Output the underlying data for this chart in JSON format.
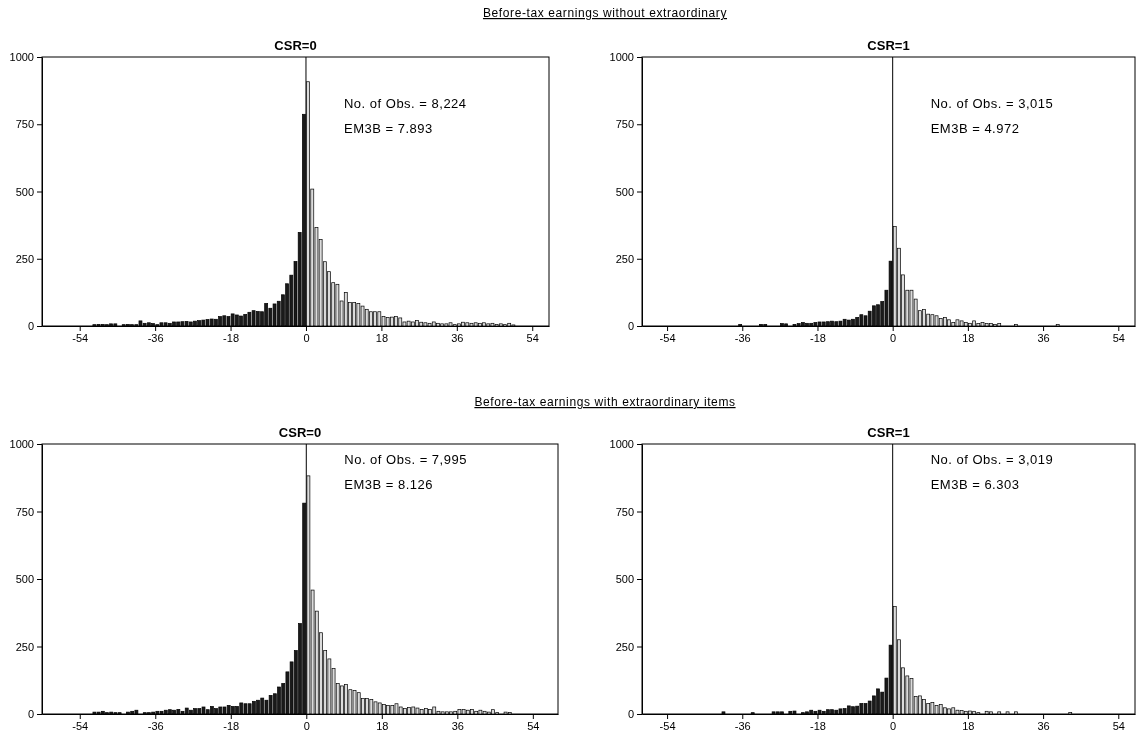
{
  "chart_data": [
    {
      "type": "histogram",
      "title": "CSR=0",
      "subtitle": "Before-tax earnings without extraordinary",
      "annotations": [
        "No. of Obs. = 8,224",
        "EM3B = 7.893"
      ],
      "bins": [
        -51,
        -50,
        -49,
        -48,
        -47,
        -46,
        -45,
        -44,
        -43,
        -42,
        -41,
        -40,
        -39,
        -38,
        -37,
        -36,
        -35,
        -34,
        -33,
        -32,
        -31,
        -30,
        -29,
        -28,
        -27,
        -26,
        -25,
        -24,
        -23,
        -22,
        -21,
        -20,
        -19,
        -18,
        -17,
        -16,
        -15,
        -14,
        -13,
        -12,
        -11,
        -10,
        -9,
        -8,
        -7,
        -6,
        -5,
        -4,
        -3,
        -2,
        -1,
        0,
        1,
        2,
        3,
        4,
        5,
        6,
        7,
        8,
        9,
        10,
        11,
        12,
        13,
        14,
        15,
        16,
        17,
        18,
        19,
        20,
        21,
        22,
        23,
        24,
        25,
        26,
        27,
        28,
        29,
        30,
        31,
        32,
        33,
        34,
        35,
        36,
        37,
        38,
        39,
        40,
        41,
        42,
        43,
        44,
        45,
        46,
        47,
        48,
        49,
        50
      ],
      "values": [
        5,
        6,
        6,
        5,
        8,
        8,
        0,
        5,
        6,
        5,
        5,
        19,
        10,
        12,
        9,
        5,
        12,
        12,
        10,
        15,
        15,
        16,
        17,
        15,
        18,
        20,
        22,
        24,
        26,
        25,
        35,
        38,
        35,
        45,
        41,
        37,
        43,
        51,
        57,
        54,
        53,
        84,
        66,
        82,
        92,
        116,
        157,
        189,
        240,
        348,
        787,
        908,
        509,
        366,
        322,
        239,
        202,
        161,
        155,
        93,
        125,
        87,
        87,
        84,
        74,
        62,
        53,
        53,
        53,
        35,
        32,
        33,
        35,
        30,
        15,
        18,
        15,
        20,
        14,
        12,
        10,
        15,
        10,
        8,
        8,
        12,
        5,
        8,
        14,
        12,
        10,
        12,
        10,
        12,
        8,
        10,
        6,
        8,
        5,
        10,
        4
      ],
      "colors": [
        "#1a1a1a",
        "#1a1a1a",
        "#1a1a1a",
        "#1a1a1a",
        "#1a1a1a",
        "#1a1a1a",
        "#1a1a1a",
        "#1a1a1a",
        "#1a1a1a",
        "#1a1a1a",
        "#1a1a1a",
        "#1a1a1a",
        "#1a1a1a",
        "#1a1a1a",
        "#1a1a1a",
        "#1a1a1a",
        "#1a1a1a",
        "#1a1a1a",
        "#1a1a1a",
        "#1a1a1a",
        "#1a1a1a",
        "#1a1a1a",
        "#1a1a1a",
        "#1a1a1a",
        "#1a1a1a",
        "#1a1a1a",
        "#1a1a1a",
        "#1a1a1a",
        "#1a1a1a",
        "#1a1a1a",
        "#1a1a1a",
        "#1a1a1a",
        "#1a1a1a",
        "#1a1a1a",
        "#1a1a1a",
        "#1a1a1a",
        "#1a1a1a",
        "#1a1a1a",
        "#1a1a1a",
        "#1a1a1a",
        "#1a1a1a",
        "#1a1a1a",
        "#1a1a1a",
        "#1a1a1a",
        "#1a1a1a",
        "#1a1a1a",
        "#1a1a1a",
        "#1a1a1a",
        "#1a1a1a",
        "#1a1a1a",
        "#1a1a1a",
        "#dcdcdc",
        "#dcdcdc",
        "#dcdcdc",
        "#dcdcdc",
        "#dcdcdc",
        "#dcdcdc",
        "#dcdcdc",
        "#dcdcdc",
        "#dcdcdc",
        "#dcdcdc",
        "#dcdcdc",
        "#dcdcdc",
        "#dcdcdc",
        "#dcdcdc",
        "#dcdcdc",
        "#dcdcdc",
        "#dcdcdc",
        "#dcdcdc",
        "#dcdcdc",
        "#dcdcdc",
        "#dcdcdc",
        "#dcdcdc",
        "#dcdcdc",
        "#dcdcdc",
        "#dcdcdc",
        "#dcdcdc",
        "#dcdcdc",
        "#dcdcdc",
        "#dcdcdc",
        "#dcdcdc",
        "#dcdcdc",
        "#dcdcdc",
        "#dcdcdc",
        "#dcdcdc",
        "#dcdcdc",
        "#dcdcdc",
        "#dcdcdc",
        "#dcdcdc",
        "#dcdcdc",
        "#dcdcdc",
        "#dcdcdc",
        "#dcdcdc",
        "#dcdcdc",
        "#dcdcdc",
        "#dcdcdc",
        "#dcdcdc",
        "#dcdcdc",
        "#dcdcdc",
        "#dcdcdc",
        "#dcdcdc"
      ],
      "xlim": [
        -63,
        58
      ],
      "xticks": [
        -54,
        -36,
        -18,
        0,
        18,
        36,
        54
      ],
      "ylim": [
        0,
        1000
      ],
      "yticks": [
        0,
        250,
        500,
        750,
        1000
      ],
      "ref_lines": [
        {
          "axis": "x",
          "value": 0
        }
      ]
    },
    {
      "type": "histogram",
      "title": "CSR=1",
      "annotations": [
        "No. of Obs. = 3,015",
        "EM3B = 4.972"
      ],
      "bins": [
        -51,
        -50,
        -49,
        -48,
        -47,
        -46,
        -45,
        -44,
        -43,
        -42,
        -41,
        -40,
        -39,
        -38,
        -37,
        -36,
        -35,
        -34,
        -33,
        -32,
        -31,
        -30,
        -29,
        -28,
        -27,
        -26,
        -25,
        -24,
        -23,
        -22,
        -21,
        -20,
        -19,
        -18,
        -17,
        -16,
        -15,
        -14,
        -13,
        -12,
        -11,
        -10,
        -9,
        -8,
        -7,
        -6,
        -5,
        -4,
        -3,
        -2,
        -1,
        0,
        1,
        2,
        3,
        4,
        5,
        6,
        7,
        8,
        9,
        10,
        11,
        12,
        13,
        14,
        15,
        16,
        17,
        18,
        19,
        20,
        21,
        22,
        23,
        24,
        25,
        26,
        27,
        28,
        29,
        30,
        31,
        32,
        33,
        34,
        35,
        36,
        37,
        38,
        39,
        40,
        41,
        42,
        43,
        44,
        45,
        46,
        47,
        48,
        49,
        50
      ],
      "values": [
        0,
        0,
        0,
        0,
        0,
        0,
        0,
        0,
        0,
        0,
        0,
        0,
        0,
        0,
        6,
        0,
        0,
        0,
        0,
        6,
        6,
        0,
        0,
        0,
        9,
        8,
        0,
        6,
        9,
        13,
        10,
        10,
        13,
        15,
        15,
        16,
        18,
        16,
        18,
        25,
        22,
        25,
        32,
        42,
        38,
        55,
        75,
        79,
        91,
        133,
        241,
        370,
        289,
        190,
        133,
        133,
        100,
        57,
        61,
        44,
        42,
        38,
        28,
        32,
        23,
        13,
        23,
        19,
        13,
        10,
        19,
        9,
        13,
        9,
        9,
        6,
        9,
        0,
        0,
        0,
        6,
        0,
        0,
        0,
        0,
        0,
        0,
        0,
        0,
        0,
        6,
        0,
        0,
        0,
        0,
        0,
        0,
        0,
        0,
        0,
        0
      ],
      "colors": [
        "#1a1a1a",
        "#1a1a1a",
        "#1a1a1a",
        "#1a1a1a",
        "#1a1a1a",
        "#1a1a1a",
        "#1a1a1a",
        "#1a1a1a",
        "#1a1a1a",
        "#1a1a1a",
        "#1a1a1a",
        "#1a1a1a",
        "#1a1a1a",
        "#1a1a1a",
        "#1a1a1a",
        "#1a1a1a",
        "#1a1a1a",
        "#1a1a1a",
        "#1a1a1a",
        "#1a1a1a",
        "#1a1a1a",
        "#1a1a1a",
        "#1a1a1a",
        "#1a1a1a",
        "#1a1a1a",
        "#1a1a1a",
        "#1a1a1a",
        "#1a1a1a",
        "#1a1a1a",
        "#1a1a1a",
        "#1a1a1a",
        "#1a1a1a",
        "#1a1a1a",
        "#1a1a1a",
        "#1a1a1a",
        "#1a1a1a",
        "#1a1a1a",
        "#1a1a1a",
        "#1a1a1a",
        "#1a1a1a",
        "#1a1a1a",
        "#1a1a1a",
        "#1a1a1a",
        "#1a1a1a",
        "#1a1a1a",
        "#1a1a1a",
        "#1a1a1a",
        "#1a1a1a",
        "#1a1a1a",
        "#1a1a1a",
        "#1a1a1a",
        "#dcdcdc",
        "#dcdcdc",
        "#dcdcdc",
        "#dcdcdc",
        "#dcdcdc",
        "#dcdcdc",
        "#dcdcdc",
        "#dcdcdc",
        "#dcdcdc",
        "#dcdcdc",
        "#dcdcdc",
        "#dcdcdc",
        "#dcdcdc",
        "#dcdcdc",
        "#dcdcdc",
        "#dcdcdc",
        "#dcdcdc",
        "#dcdcdc",
        "#dcdcdc",
        "#dcdcdc",
        "#dcdcdc",
        "#dcdcdc",
        "#dcdcdc",
        "#dcdcdc",
        "#dcdcdc",
        "#dcdcdc",
        "#dcdcdc",
        "#dcdcdc",
        "#dcdcdc",
        "#dcdcdc",
        "#dcdcdc",
        "#dcdcdc",
        "#dcdcdc",
        "#dcdcdc",
        "#dcdcdc",
        "#dcdcdc",
        "#dcdcdc",
        "#dcdcdc",
        "#dcdcdc",
        "#dcdcdc",
        "#dcdcdc",
        "#dcdcdc",
        "#dcdcdc",
        "#dcdcdc",
        "#dcdcdc",
        "#dcdcdc",
        "#dcdcdc",
        "#dcdcdc",
        "#dcdcdc",
        "#dcdcdc"
      ],
      "xlim": [
        -60,
        58
      ],
      "xticks": [
        -54,
        -36,
        -18,
        0,
        18,
        36,
        54
      ],
      "ylim": [
        0,
        1000
      ],
      "yticks": [
        0,
        250,
        500,
        750,
        1000
      ],
      "ref_lines": [
        {
          "axis": "x",
          "value": 0
        }
      ]
    },
    {
      "type": "histogram",
      "title": "CSR=0",
      "subtitle": "Before-tax earnings with extraordinary items",
      "annotations": [
        "No. of Obs. = 7,995",
        "EM3B = 8.126"
      ],
      "bins": [
        -51,
        -50,
        -49,
        -48,
        -47,
        -46,
        -45,
        -44,
        -43,
        -42,
        -41,
        -40,
        -39,
        -38,
        -37,
        -36,
        -35,
        -34,
        -33,
        -32,
        -31,
        -30,
        -29,
        -28,
        -27,
        -26,
        -25,
        -24,
        -23,
        -22,
        -21,
        -20,
        -19,
        -18,
        -17,
        -16,
        -15,
        -14,
        -13,
        -12,
        -11,
        -10,
        -9,
        -8,
        -7,
        -6,
        -5,
        -4,
        -3,
        -2,
        -1,
        0,
        1,
        2,
        3,
        4,
        5,
        6,
        7,
        8,
        9,
        10,
        11,
        12,
        13,
        14,
        15,
        16,
        17,
        18,
        19,
        20,
        21,
        22,
        23,
        24,
        25,
        26,
        27,
        28,
        29,
        30,
        31,
        32,
        33,
        34,
        35,
        36,
        37,
        38,
        39,
        40,
        41,
        42,
        43,
        44,
        45,
        46,
        47,
        48,
        49,
        50
      ],
      "values": [
        7,
        7,
        10,
        5,
        7,
        5,
        5,
        0,
        7,
        10,
        14,
        0,
        5,
        5,
        7,
        10,
        10,
        14,
        16,
        14,
        17,
        10,
        22,
        14,
        20,
        20,
        26,
        16,
        28,
        20,
        26,
        26,
        32,
        28,
        28,
        41,
        38,
        38,
        47,
        51,
        59,
        51,
        69,
        75,
        100,
        113,
        156,
        193,
        235,
        335,
        781,
        882,
        459,
        381,
        301,
        235,
        204,
        168,
        113,
        104,
        109,
        90,
        87,
        79,
        57,
        57,
        54,
        45,
        41,
        35,
        32,
        32,
        38,
        26,
        20,
        24,
        26,
        22,
        17,
        20,
        17,
        26,
        10,
        8,
        8,
        8,
        10,
        17,
        17,
        14,
        17,
        10,
        14,
        10,
        7,
        16,
        5,
        0,
        7,
        6,
        0
      ],
      "colors": [
        "#1a1a1a",
        "#1a1a1a",
        "#1a1a1a",
        "#1a1a1a",
        "#1a1a1a",
        "#1a1a1a",
        "#1a1a1a",
        "#1a1a1a",
        "#1a1a1a",
        "#1a1a1a",
        "#1a1a1a",
        "#1a1a1a",
        "#1a1a1a",
        "#1a1a1a",
        "#1a1a1a",
        "#1a1a1a",
        "#1a1a1a",
        "#1a1a1a",
        "#1a1a1a",
        "#1a1a1a",
        "#1a1a1a",
        "#1a1a1a",
        "#1a1a1a",
        "#1a1a1a",
        "#1a1a1a",
        "#1a1a1a",
        "#1a1a1a",
        "#1a1a1a",
        "#1a1a1a",
        "#1a1a1a",
        "#1a1a1a",
        "#1a1a1a",
        "#1a1a1a",
        "#1a1a1a",
        "#1a1a1a",
        "#1a1a1a",
        "#1a1a1a",
        "#1a1a1a",
        "#1a1a1a",
        "#1a1a1a",
        "#1a1a1a",
        "#1a1a1a",
        "#1a1a1a",
        "#1a1a1a",
        "#1a1a1a",
        "#1a1a1a",
        "#1a1a1a",
        "#1a1a1a",
        "#1a1a1a",
        "#1a1a1a",
        "#1a1a1a",
        "#dcdcdc",
        "#dcdcdc",
        "#dcdcdc",
        "#dcdcdc",
        "#dcdcdc",
        "#dcdcdc",
        "#dcdcdc",
        "#dcdcdc",
        "#dcdcdc",
        "#dcdcdc",
        "#dcdcdc",
        "#dcdcdc",
        "#dcdcdc",
        "#dcdcdc",
        "#dcdcdc",
        "#dcdcdc",
        "#dcdcdc",
        "#dcdcdc",
        "#dcdcdc",
        "#dcdcdc",
        "#dcdcdc",
        "#dcdcdc",
        "#dcdcdc",
        "#dcdcdc",
        "#dcdcdc",
        "#dcdcdc",
        "#dcdcdc",
        "#dcdcdc",
        "#dcdcdc",
        "#dcdcdc",
        "#dcdcdc",
        "#dcdcdc",
        "#dcdcdc",
        "#dcdcdc",
        "#dcdcdc",
        "#dcdcdc",
        "#dcdcdc",
        "#dcdcdc",
        "#dcdcdc",
        "#dcdcdc",
        "#dcdcdc",
        "#dcdcdc",
        "#dcdcdc",
        "#dcdcdc",
        "#dcdcdc",
        "#dcdcdc",
        "#dcdcdc",
        "#dcdcdc",
        "#dcdcdc",
        "#dcdcdc"
      ],
      "xlim": [
        -63,
        60
      ],
      "xticks": [
        -54,
        -36,
        -18,
        0,
        18,
        36,
        54
      ],
      "ylim": [
        0,
        1000
      ],
      "yticks": [
        0,
        250,
        500,
        750,
        1000
      ],
      "ref_lines": [
        {
          "axis": "x",
          "value": 0
        }
      ]
    },
    {
      "type": "histogram",
      "title": "CSR=1",
      "annotations": [
        "No. of Obs. = 3,019",
        "EM3B = 6.303"
      ],
      "bins": [
        -51,
        -50,
        -49,
        -48,
        -47,
        -46,
        -45,
        -44,
        -43,
        -42,
        -41,
        -40,
        -39,
        -38,
        -37,
        -36,
        -35,
        -34,
        -33,
        -32,
        -31,
        -30,
        -29,
        -28,
        -27,
        -26,
        -25,
        -24,
        -23,
        -22,
        -21,
        -20,
        -19,
        -18,
        -17,
        -16,
        -15,
        -14,
        -13,
        -12,
        -11,
        -10,
        -9,
        -8,
        -7,
        -6,
        -5,
        -4,
        -3,
        -2,
        -1,
        0,
        1,
        2,
        3,
        4,
        5,
        6,
        7,
        8,
        9,
        10,
        11,
        12,
        13,
        14,
        15,
        16,
        17,
        18,
        19,
        20,
        21,
        22,
        23,
        24,
        25,
        26,
        27,
        28,
        29,
        30,
        31,
        32,
        33,
        34,
        35,
        36,
        37,
        38,
        39,
        40,
        41,
        42,
        43,
        44,
        45,
        46,
        47,
        48,
        49,
        50
      ],
      "values": [
        0,
        0,
        0,
        0,
        0,
        0,
        0,
        0,
        0,
        0,
        8,
        0,
        0,
        0,
        0,
        0,
        0,
        5,
        0,
        0,
        0,
        0,
        8,
        8,
        8,
        0,
        10,
        11,
        0,
        5,
        8,
        14,
        10,
        14,
        10,
        16,
        16,
        14,
        19,
        20,
        30,
        27,
        29,
        39,
        39,
        48,
        67,
        93,
        81,
        133,
        255,
        398,
        275,
        171,
        141,
        131,
        65,
        67,
        54,
        39,
        43,
        32,
        35,
        23,
        19,
        23,
        14,
        13,
        10,
        11,
        10,
        5,
        0,
        10,
        8,
        0,
        8,
        0,
        8,
        0,
        8,
        0,
        0,
        0,
        0,
        0,
        0,
        0,
        0,
        0,
        0,
        0,
        0,
        6,
        0,
        0,
        0,
        0,
        0,
        0,
        0
      ],
      "colors": [
        "#1a1a1a",
        "#1a1a1a",
        "#1a1a1a",
        "#1a1a1a",
        "#1a1a1a",
        "#1a1a1a",
        "#1a1a1a",
        "#1a1a1a",
        "#1a1a1a",
        "#1a1a1a",
        "#1a1a1a",
        "#1a1a1a",
        "#1a1a1a",
        "#1a1a1a",
        "#1a1a1a",
        "#1a1a1a",
        "#1a1a1a",
        "#1a1a1a",
        "#1a1a1a",
        "#1a1a1a",
        "#1a1a1a",
        "#1a1a1a",
        "#1a1a1a",
        "#1a1a1a",
        "#1a1a1a",
        "#1a1a1a",
        "#1a1a1a",
        "#1a1a1a",
        "#1a1a1a",
        "#1a1a1a",
        "#1a1a1a",
        "#1a1a1a",
        "#1a1a1a",
        "#1a1a1a",
        "#1a1a1a",
        "#1a1a1a",
        "#1a1a1a",
        "#1a1a1a",
        "#1a1a1a",
        "#1a1a1a",
        "#1a1a1a",
        "#1a1a1a",
        "#1a1a1a",
        "#1a1a1a",
        "#1a1a1a",
        "#1a1a1a",
        "#1a1a1a",
        "#1a1a1a",
        "#1a1a1a",
        "#1a1a1a",
        "#1a1a1a",
        "#dcdcdc",
        "#dcdcdc",
        "#dcdcdc",
        "#dcdcdc",
        "#dcdcdc",
        "#dcdcdc",
        "#dcdcdc",
        "#dcdcdc",
        "#dcdcdc",
        "#dcdcdc",
        "#dcdcdc",
        "#dcdcdc",
        "#dcdcdc",
        "#dcdcdc",
        "#dcdcdc",
        "#dcdcdc",
        "#dcdcdc",
        "#dcdcdc",
        "#dcdcdc",
        "#dcdcdc",
        "#dcdcdc",
        "#dcdcdc",
        "#dcdcdc",
        "#dcdcdc",
        "#dcdcdc",
        "#dcdcdc",
        "#dcdcdc",
        "#dcdcdc",
        "#dcdcdc",
        "#dcdcdc",
        "#dcdcdc",
        "#dcdcdc",
        "#dcdcdc",
        "#dcdcdc",
        "#dcdcdc",
        "#dcdcdc",
        "#dcdcdc",
        "#dcdcdc",
        "#dcdcdc",
        "#dcdcdc",
        "#dcdcdc",
        "#dcdcdc",
        "#dcdcdc",
        "#dcdcdc",
        "#dcdcdc",
        "#dcdcdc",
        "#dcdcdc",
        "#dcdcdc",
        "#dcdcdc",
        "#dcdcdc"
      ],
      "xlim": [
        -60,
        58
      ],
      "xticks": [
        -54,
        -36,
        -18,
        0,
        18,
        36,
        54
      ],
      "ylim": [
        0,
        1000
      ],
      "yticks": [
        0,
        250,
        500,
        750,
        1000
      ],
      "ref_lines": [
        {
          "axis": "x",
          "value": 0
        }
      ]
    }
  ]
}
